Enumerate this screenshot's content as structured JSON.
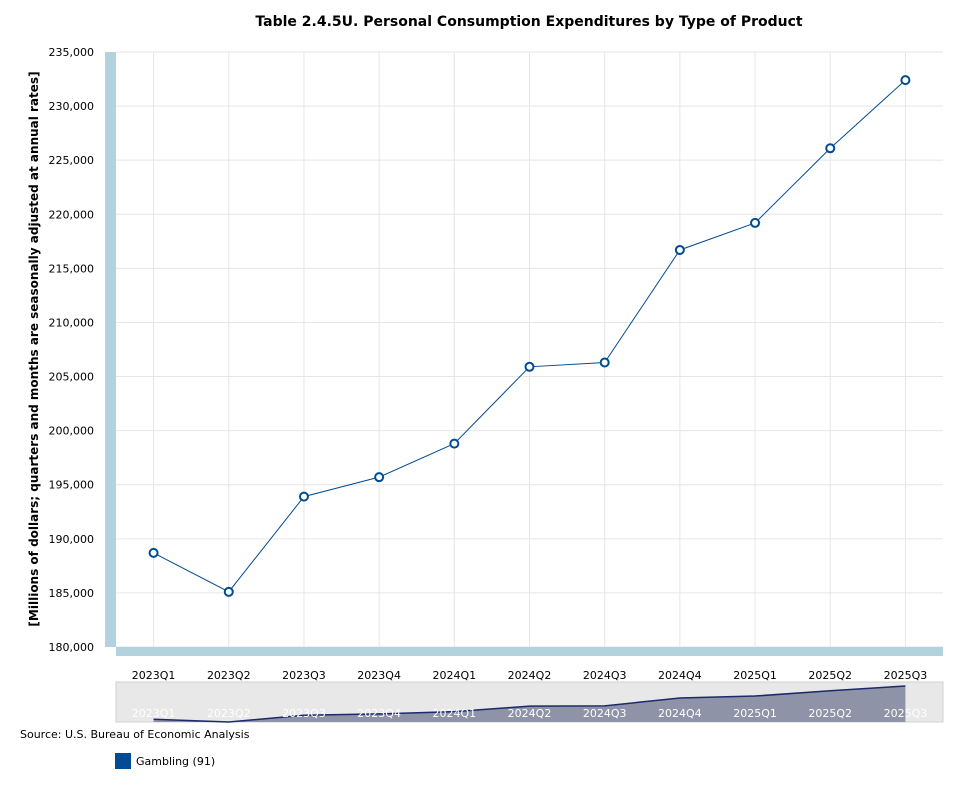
{
  "chart_data": {
    "type": "line",
    "title": "Table 2.4.5U. Personal Consumption Expenditures by Type of Product",
    "ylabel": "[Millions of dollars; quarters and months are seasonally adjusted at annual rates]",
    "xlabel": "",
    "categories": [
      "2023Q1",
      "2023Q2",
      "2023Q3",
      "2023Q4",
      "2024Q1",
      "2024Q2",
      "2024Q3",
      "2024Q4",
      "2025Q1",
      "2025Q2",
      "2025Q3"
    ],
    "series": [
      {
        "name": "Gambling (91)",
        "values": [
          188700,
          185100,
          193900,
          195700,
          198800,
          205900,
          206300,
          216700,
          219200,
          226100,
          232400
        ],
        "color": "#004b93"
      }
    ],
    "ylim": [
      180000,
      235000
    ],
    "yticks": [
      180000,
      185000,
      190000,
      195000,
      200000,
      205000,
      210000,
      215000,
      220000,
      225000,
      230000,
      235000
    ],
    "ytick_labels": [
      "180,000",
      "185,000",
      "190,000",
      "195,000",
      "200,000",
      "205,000",
      "210,000",
      "215,000",
      "220,000",
      "225,000",
      "230,000",
      "235,000"
    ],
    "grid": true,
    "legend": "bottom-left",
    "source": "Source: U.S. Bureau of Economic Analysis"
  },
  "colors": {
    "axis_band": "#b2d3de",
    "grid": "#e6e6e6",
    "line": "#004b93",
    "marker_fill": "#ffffff",
    "navigator_bg": "#e8e8e8",
    "navigator_fill": "#8e93a8",
    "navigator_line": "#1b2a6b"
  }
}
